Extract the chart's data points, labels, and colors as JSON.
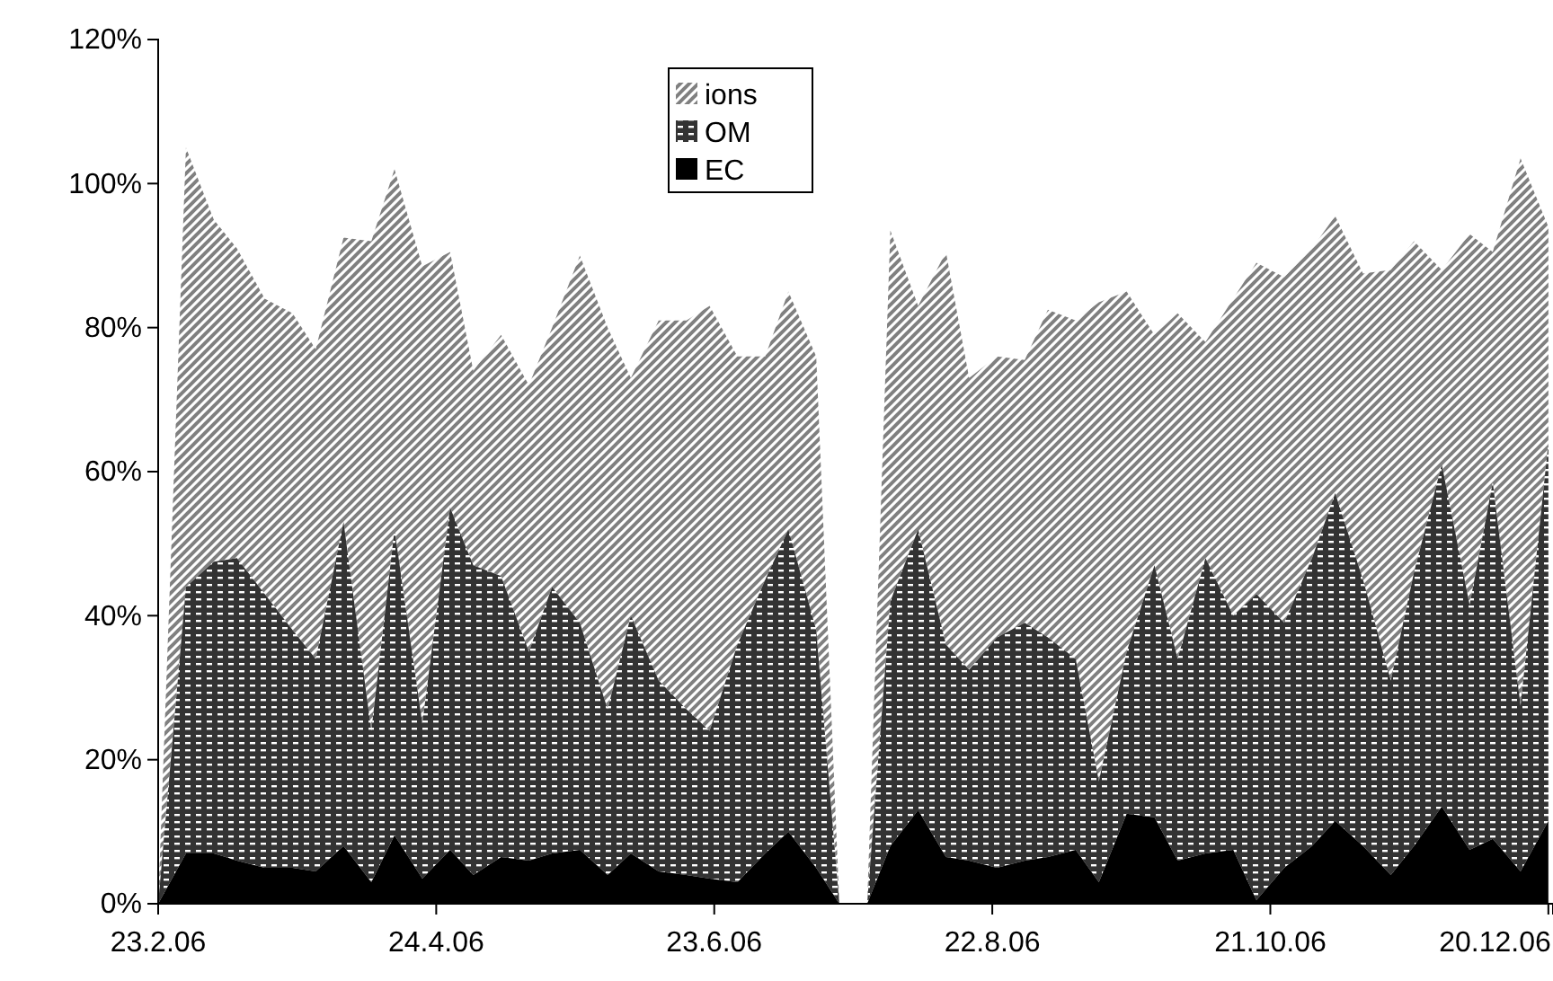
{
  "chart_data": {
    "type": "area",
    "stacked": true,
    "x": [
      "2006-02-23",
      "2006-03-01",
      "2006-03-07",
      "2006-03-12",
      "2006-03-18",
      "2006-03-24",
      "2006-03-29",
      "2006-04-04",
      "2006-04-10",
      "2006-04-15",
      "2006-04-21",
      "2006-04-27",
      "2006-05-02",
      "2006-05-08",
      "2006-05-14",
      "2006-05-19",
      "2006-05-25",
      "2006-05-31",
      "2006-06-05",
      "2006-06-11",
      "2006-06-17",
      "2006-06-22",
      "2006-06-28",
      "2006-07-04",
      "2006-07-09",
      "2006-07-15",
      "2006-07-20",
      "2006-07-23",
      "2006-07-26",
      "2006-07-31",
      "2006-08-06",
      "2006-08-12",
      "2006-08-17",
      "2006-08-23",
      "2006-08-29",
      "2006-09-03",
      "2006-09-09",
      "2006-09-14",
      "2006-09-20",
      "2006-09-26",
      "2006-10-01",
      "2006-10-07",
      "2006-10-13",
      "2006-10-18",
      "2006-10-24",
      "2006-10-30",
      "2006-11-04",
      "2006-11-10",
      "2006-11-16",
      "2006-11-21",
      "2006-11-27",
      "2006-12-03",
      "2006-12-08",
      "2006-12-14",
      "2006-12-20"
    ],
    "series": [
      {
        "name": "EC",
        "color": "#000000",
        "values": [
          0,
          7,
          7,
          6,
          5,
          5,
          4.5,
          8,
          3,
          9.5,
          3.5,
          7.5,
          4,
          6.5,
          6,
          7,
          7.5,
          4,
          7,
          4.5,
          4,
          3.5,
          3,
          7,
          10,
          5,
          0,
          null,
          0,
          8,
          13,
          6.5,
          6,
          5,
          6,
          6.5,
          7.5,
          3,
          12.5,
          12,
          6,
          7,
          7.5,
          0.5,
          5,
          8,
          11.5,
          8,
          4,
          8,
          13.5,
          7.5,
          9,
          4.5,
          11.5
        ]
      },
      {
        "name": "OM",
        "color": "#333333",
        "values": [
          0,
          37,
          40.5,
          42,
          38,
          33,
          29.5,
          45,
          21,
          42.5,
          21.5,
          47.5,
          43,
          39,
          29,
          37,
          31.5,
          23,
          33,
          26.5,
          23,
          20.5,
          33,
          38,
          42,
          33,
          0,
          null,
          0,
          34,
          39,
          29.5,
          26.5,
          32,
          33,
          30.5,
          26.5,
          14,
          22.5,
          35,
          28,
          41,
          32.5,
          42.5,
          34,
          40,
          45.5,
          37,
          27,
          38,
          47.5,
          34,
          49.5,
          23,
          52.5
        ]
      },
      {
        "name": "ions",
        "color": "#808080",
        "values": [
          0,
          61,
          47.5,
          43,
          41,
          44,
          43,
          39.5,
          68,
          50,
          63.5,
          35.5,
          27,
          33.5,
          37,
          36,
          51,
          53,
          33,
          50,
          54,
          59,
          40,
          31,
          33,
          38,
          0,
          null,
          0,
          51.5,
          31,
          54.5,
          40.5,
          39,
          36.5,
          45.5,
          47,
          66.5,
          50,
          32,
          48,
          30,
          44,
          46,
          48,
          43,
          38.5,
          42.5,
          57,
          46,
          27,
          51.5,
          32,
          76,
          30
        ]
      }
    ],
    "xlim": [
      "2006-02-23",
      "2006-12-21"
    ],
    "xticks": [
      {
        "value": "2006-02-23",
        "label": "23.2.06"
      },
      {
        "value": "2006-04-24",
        "label": "24.4.06"
      },
      {
        "value": "2006-06-23",
        "label": "23.6.06"
      },
      {
        "value": "2006-08-22",
        "label": "22.8.06"
      },
      {
        "value": "2006-10-21",
        "label": "21.10.06"
      },
      {
        "value": "2006-12-20",
        "label": "20.12.06"
      }
    ],
    "ylim": [
      0,
      120
    ],
    "yticks": [
      {
        "value": 0,
        "label": "0%"
      },
      {
        "value": 20,
        "label": "20%"
      },
      {
        "value": 40,
        "label": "40%"
      },
      {
        "value": 60,
        "label": "60%"
      },
      {
        "value": 80,
        "label": "80%"
      },
      {
        "value": 100,
        "label": "100%"
      },
      {
        "value": 120,
        "label": "120%"
      }
    ],
    "legend": "top"
  }
}
